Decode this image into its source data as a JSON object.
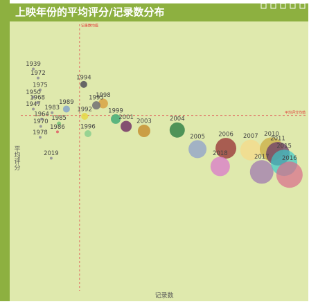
{
  "chart_data": {
    "type": "scatter",
    "title": "上映年份的平均评分/记录数分布",
    "x_label": "记录数",
    "y_label": "平均评分",
    "xlim": [
      0,
      1000
    ],
    "ylim": [
      6,
      9
    ],
    "mean_lines": [
      {
        "label": "记录数均值",
        "axis": "x",
        "value": 234
      },
      {
        "label": "平均评分均值",
        "axis": "y",
        "value": 8.0
      }
    ],
    "labels": [
      "1939",
      "1972",
      "1994",
      "1975",
      "1950",
      "1968",
      "1998",
      "1947",
      "1983",
      "1989",
      "1995",
      "1964",
      "1992",
      "1999",
      "2001",
      "2003",
      "2004",
      "1985",
      "1970",
      "1986",
      "1996",
      "1978",
      "2019",
      "2005",
      "2006",
      "2007",
      "2010",
      "2011",
      "2018",
      "2017",
      "2015",
      "2016"
    ],
    "x": [
      79,
      95,
      248,
      102,
      79,
      93,
      313,
      79,
      142,
      190,
      290,
      107,
      251,
      355,
      390,
      450,
      561,
      165,
      104,
      160,
      262,
      102,
      139,
      629,
      724,
      807,
      877,
      898,
      705,
      844,
      919,
      937
    ],
    "values": [
      8.51,
      8.41,
      8.34,
      8.28,
      8.2,
      8.14,
      8.13,
      8.07,
      8.03,
      8.07,
      8.11,
      7.96,
      7.99,
      7.96,
      7.88,
      7.83,
      7.84,
      7.91,
      7.88,
      7.82,
      7.8,
      7.76,
      7.53,
      7.63,
      7.64,
      7.62,
      7.63,
      7.58,
      7.44,
      7.38,
      7.48,
      7.35
    ],
    "sizes": [
      1,
      1,
      4,
      1,
      1,
      1,
      6,
      1,
      1,
      4,
      5,
      1,
      4,
      6,
      7,
      8,
      10,
      2,
      1,
      1,
      4,
      1,
      1,
      12,
      14,
      14,
      16,
      16,
      13,
      16,
      18,
      18
    ],
    "colors": [
      "#999",
      "#999",
      "#666",
      "#999",
      "#999",
      "#999",
      "#d9a64a",
      "#999",
      "#999",
      "#8aa8c8",
      "#777",
      "#999",
      "#e5d84a",
      "#4caf7a",
      "#7a3f6a",
      "#c8963a",
      "#3f8a4f",
      "#7bc47b",
      "#999",
      "#e07070",
      "#8fd08f",
      "#999",
      "#999",
      "#98a8c8",
      "#9a3a3a",
      "#f5d98a",
      "#c9a83a",
      "#6a3a6a",
      "#d980c8",
      "#a07ab0",
      "#3ac8c8",
      "#d86a8a"
    ],
    "opacities": [
      1,
      1,
      1,
      1,
      1,
      1,
      0.9,
      1,
      1,
      0.9,
      0.9,
      1,
      0.9,
      0.9,
      0.9,
      0.9,
      0.9,
      0.9,
      1,
      1,
      0.9,
      1,
      1,
      0.85,
      0.8,
      0.75,
      0.7,
      0.75,
      0.8,
      0.75,
      0.7,
      0.7
    ]
  }
}
